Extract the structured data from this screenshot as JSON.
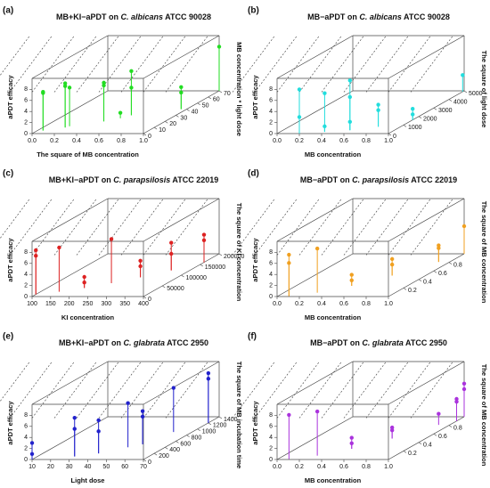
{
  "chart_data": [
    {
      "type": "scatter3d",
      "panel": "(a)",
      "title": [
        "MB+KI−aPDT on ",
        "C. albicans",
        " ATCC 90028"
      ],
      "xlabel": "The square of MB concentration",
      "zlabel": "aPDT efficacy",
      "ylabel": "MB concentration * light dose",
      "color": "#22dd22",
      "xlim": [
        0,
        1
      ],
      "ylim": [
        0,
        70
      ],
      "zlim": [
        0,
        10
      ],
      "xticks": [
        {
          "value": 0,
          "label": "0.0"
        },
        0.2,
        0.4,
        0.6,
        0.8,
        {
          "value": 1,
          "label": "1.0"
        }
      ],
      "yticks": [
        0,
        10,
        20,
        30,
        40,
        50,
        60,
        70
      ],
      "zticks": [
        0,
        2,
        4,
        6,
        8
      ],
      "x": [
        0.05,
        0.05,
        0.2,
        0.2,
        0.22,
        0.45,
        0.45,
        0.55,
        0.6,
        0.6,
        0.95,
        0.95,
        1.0
      ],
      "y": [
        5,
        5,
        10,
        10,
        12,
        20,
        20,
        25,
        30,
        30,
        40,
        40,
        70
      ],
      "z": [
        7,
        6.8,
        8,
        7.5,
        7,
        7,
        6.5,
        1,
        8,
        5,
        4,
        3,
        8
      ]
    },
    {
      "type": "scatter3d",
      "panel": "(b)",
      "title": [
        "MB−aPDT on ",
        "C. albicans",
        " ATCC 90028"
      ],
      "xlabel": "MB concentration",
      "zlabel": "aPDT efficacy",
      "ylabel": "The square of light dose",
      "color": "#22dddd",
      "xlim": [
        0,
        1
      ],
      "ylim": [
        0,
        5000
      ],
      "zlim": [
        0,
        10
      ],
      "xticks": [
        {
          "value": 0,
          "label": "0.0"
        },
        0.2,
        0.4,
        0.6,
        0.8,
        {
          "value": 1,
          "label": "1.0"
        }
      ],
      "yticks": [
        0,
        1000,
        2000,
        3000,
        4000,
        5000
      ],
      "zticks": [
        0,
        2,
        4,
        6,
        8
      ],
      "x": [
        0.2,
        0.2,
        0.4,
        0.4,
        0.6,
        0.6,
        0.6,
        0.8,
        0.8,
        1.0,
        1.0,
        1.0
      ],
      "y": [
        0,
        0,
        200,
        200,
        400,
        400,
        400,
        800,
        800,
        1600,
        4900,
        1600
      ],
      "z": [
        8,
        3,
        7,
        1,
        9,
        1.5,
        6,
        4,
        3,
        2,
        3,
        1
      ]
    },
    {
      "type": "scatter3d",
      "panel": "(c)",
      "title": [
        "MB+KI−aPDT on ",
        "C. parapsilosis",
        " ATCC 22019"
      ],
      "xlabel": "KI concentration",
      "zlabel": "aPDT efficacy",
      "ylabel": "The square of KI concentration",
      "color": "#dd2222",
      "xlim": [
        100,
        400
      ],
      "ylim": [
        0,
        200000
      ],
      "zlim": [
        0,
        10
      ],
      "xticks": [
        100,
        150,
        200,
        250,
        300,
        350,
        400
      ],
      "yticks": [
        0,
        50000,
        100000,
        150000,
        200000
      ],
      "zticks": [
        0,
        2,
        4,
        6,
        8
      ],
      "x": [
        100,
        100,
        150,
        200,
        200,
        250,
        300,
        300,
        350,
        350,
        400,
        400
      ],
      "y": [
        10000,
        10000,
        22500,
        40000,
        40000,
        62500,
        90000,
        90000,
        122500,
        122500,
        160000,
        160000
      ],
      "z": [
        8,
        7,
        8,
        2,
        1,
        8,
        3,
        2,
        5,
        3,
        5,
        4
      ]
    },
    {
      "type": "scatter3d",
      "panel": "(d)",
      "title": [
        "MB−aPDT on ",
        "C. parapsilosis",
        " ATCC 22019"
      ],
      "xlabel": "MB concentration",
      "zlabel": "aPDT efficacy",
      "ylabel": "The square of MB concentration",
      "color": "#f0a020",
      "xlim": [
        0,
        1
      ],
      "ylim": [
        0,
        1
      ],
      "zlim": [
        0,
        10
      ],
      "xticks": [
        {
          "value": 0,
          "label": "0.0"
        },
        0.2,
        0.4,
        0.6,
        0.8,
        {
          "value": 1,
          "label": "1.0"
        }
      ],
      "yticks": [
        0.2,
        0.4,
        0.6,
        0.8
      ],
      "zticks": [
        0,
        2,
        4,
        6,
        8
      ],
      "x": [
        0.1,
        0.1,
        0.3,
        0.5,
        0.5,
        0.7,
        0.7,
        0.9,
        0.9,
        1.0
      ],
      "y": [
        0.01,
        0.01,
        0.09,
        0.25,
        0.25,
        0.49,
        0.49,
        0.81,
        0.81,
        1.0
      ],
      "z": [
        7.5,
        6,
        8,
        1,
        2,
        3,
        2,
        3,
        2.5,
        5
      ]
    },
    {
      "type": "scatter3d",
      "panel": "(e)",
      "title": [
        "MB+KI−aPDT on ",
        "C. glabrata",
        " ATCC 2950"
      ],
      "xlabel": "Light dose",
      "zlabel": "aPDT efficacy",
      "ylabel": "The square of MB incubation time",
      "color": "#2222cc",
      "xlim": [
        10,
        70
      ],
      "ylim": [
        0,
        1400
      ],
      "zlim": [
        0,
        10
      ],
      "xticks": [
        10,
        20,
        30,
        40,
        50,
        60,
        70
      ],
      "yticks": [
        0,
        200,
        400,
        600,
        800,
        1000,
        1200,
        1400
      ],
      "zticks": [
        0,
        2,
        4,
        6,
        8
      ],
      "x": [
        10,
        10,
        30,
        30,
        40,
        40,
        50,
        55,
        55,
        60,
        70,
        70
      ],
      "y": [
        0,
        0,
        100,
        100,
        200,
        200,
        400,
        500,
        500,
        900,
        1200,
        1200
      ],
      "z": [
        3,
        1,
        7,
        5,
        6,
        4,
        8,
        6,
        5,
        8,
        8,
        9
      ]
    },
    {
      "type": "scatter3d",
      "panel": "(f)",
      "title": [
        "MB−aPDT on ",
        "C. glabrata",
        " ATCC 2950"
      ],
      "xlabel": "MB concentration",
      "zlabel": "aPDT efficacy",
      "ylabel": "The square of MB concentration",
      "color": "#aa33dd",
      "xlim": [
        0,
        1
      ],
      "ylim": [
        0,
        1
      ],
      "zlim": [
        0,
        10
      ],
      "xticks": [
        {
          "value": 0,
          "label": "0.0"
        },
        0.2,
        0.4,
        0.6,
        0.8,
        {
          "value": 1,
          "label": "1.0"
        }
      ],
      "yticks": [
        0.2,
        0.4,
        0.6,
        0.8
      ],
      "zticks": [
        0,
        2,
        4,
        6,
        8
      ],
      "x": [
        0.1,
        0.3,
        0.5,
        0.5,
        0.7,
        0.7,
        0.9,
        1.0,
        1.0,
        1.0,
        1.0
      ],
      "y": [
        0.01,
        0.09,
        0.25,
        0.25,
        0.49,
        0.49,
        0.81,
        0.9,
        0.9,
        1.0,
        1.0
      ],
      "z": [
        8,
        8,
        1,
        2,
        2,
        1.5,
        2,
        4,
        3.5,
        6,
        5
      ]
    }
  ]
}
